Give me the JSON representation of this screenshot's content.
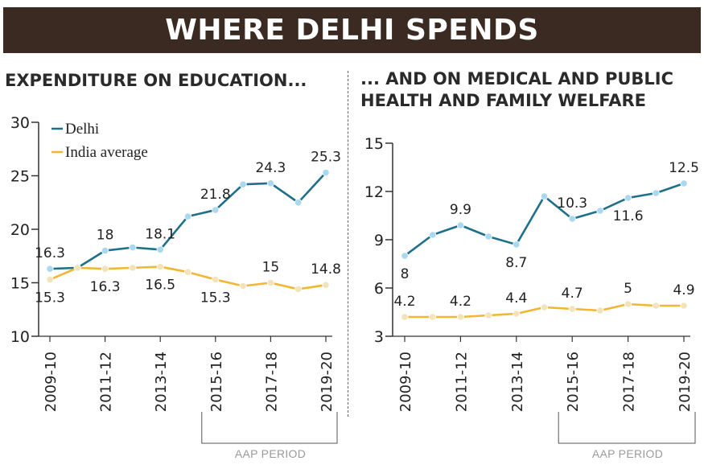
{
  "banner": {
    "title": "WHERE DELHI SPENDS"
  },
  "panels": [
    {
      "title": "EXPENDITURE ON EDUCATION..."
    },
    {
      "title": "... AND ON MEDICAL AND PUBLIC\nHEALTH AND FAMILY WELFARE"
    }
  ],
  "colors": {
    "banner_bg": "#3a2a22",
    "delhi": "#1f6f8b",
    "delhi_marker": "#a9d8ef",
    "india": "#f2b631",
    "india_marker": "#f3e3b8"
  },
  "chart_data": [
    {
      "type": "line",
      "title": "EXPENDITURE ON EDUCATION...",
      "categories": [
        "2009-10",
        "2010-11",
        "2011-12",
        "2012-13",
        "2013-14",
        "2014-15",
        "2015-16",
        "2016-17",
        "2017-18",
        "2018-19",
        "2019-20"
      ],
      "tick_labels": [
        "2009-10",
        "2011-12",
        "2013-14",
        "2015-16",
        "2017-18",
        "2019-20"
      ],
      "ylim": [
        10,
        30
      ],
      "yticks": [
        10,
        15,
        20,
        25,
        30
      ],
      "legend": {
        "placement": "top-left",
        "entries": [
          "Delhi",
          "India average"
        ]
      },
      "series": [
        {
          "name": "Delhi",
          "values": [
            16.3,
            16.4,
            18.0,
            18.3,
            18.1,
            21.2,
            21.8,
            24.2,
            24.3,
            22.5,
            25.3
          ]
        },
        {
          "name": "India average",
          "values": [
            15.3,
            16.4,
            16.3,
            16.4,
            16.5,
            16.0,
            15.3,
            14.7,
            15.0,
            14.4,
            14.8
          ]
        }
      ],
      "data_labels": [
        {
          "series": 0,
          "index": 0,
          "text": "16.3",
          "pos": "above"
        },
        {
          "series": 0,
          "index": 2,
          "text": "18",
          "pos": "above"
        },
        {
          "series": 0,
          "index": 4,
          "text": "18.1",
          "pos": "above"
        },
        {
          "series": 0,
          "index": 6,
          "text": "21.8",
          "pos": "above"
        },
        {
          "series": 0,
          "index": 8,
          "text": "24.3",
          "pos": "above"
        },
        {
          "series": 0,
          "index": 10,
          "text": "25.3",
          "pos": "above"
        },
        {
          "series": 1,
          "index": 0,
          "text": "15.3",
          "pos": "below"
        },
        {
          "series": 1,
          "index": 2,
          "text": "16.3",
          "pos": "below"
        },
        {
          "series": 1,
          "index": 4,
          "text": "16.5",
          "pos": "below"
        },
        {
          "series": 1,
          "index": 6,
          "text": "15.3",
          "pos": "below"
        },
        {
          "series": 1,
          "index": 8,
          "text": "15",
          "pos": "above"
        },
        {
          "series": 1,
          "index": 10,
          "text": "14.8",
          "pos": "above"
        }
      ],
      "bracket": {
        "label": "AAP PERIOD",
        "from": "2015-16",
        "to": "2019-20"
      }
    },
    {
      "type": "line",
      "title": "... AND ON MEDICAL AND PUBLIC HEALTH AND FAMILY WELFARE",
      "categories": [
        "2009-10",
        "2010-11",
        "2011-12",
        "2012-13",
        "2013-14",
        "2014-15",
        "2015-16",
        "2016-17",
        "2017-18",
        "2018-19",
        "2019-20"
      ],
      "tick_labels": [
        "2009-10",
        "2011-12",
        "2013-14",
        "2015-16",
        "2017-18",
        "2019-20"
      ],
      "ylim": [
        3,
        15
      ],
      "yticks": [
        3,
        6,
        9,
        12,
        15
      ],
      "series": [
        {
          "name": "Delhi",
          "values": [
            8.0,
            9.3,
            9.9,
            9.2,
            8.7,
            11.7,
            10.3,
            10.8,
            11.6,
            11.9,
            12.5
          ]
        },
        {
          "name": "India average",
          "values": [
            4.2,
            4.2,
            4.2,
            4.3,
            4.4,
            4.8,
            4.7,
            4.6,
            5.0,
            4.9,
            4.9
          ]
        }
      ],
      "data_labels": [
        {
          "series": 0,
          "index": 0,
          "text": "8",
          "pos": "below"
        },
        {
          "series": 0,
          "index": 2,
          "text": "9.9",
          "pos": "above"
        },
        {
          "series": 0,
          "index": 4,
          "text": "8.7",
          "pos": "below"
        },
        {
          "series": 0,
          "index": 6,
          "text": "10.3",
          "pos": "above"
        },
        {
          "series": 0,
          "index": 8,
          "text": "11.6",
          "pos": "below"
        },
        {
          "series": 0,
          "index": 10,
          "text": "12.5",
          "pos": "above"
        },
        {
          "series": 1,
          "index": 0,
          "text": "4.2",
          "pos": "above"
        },
        {
          "series": 1,
          "index": 2,
          "text": "4.2",
          "pos": "above"
        },
        {
          "series": 1,
          "index": 4,
          "text": "4.4",
          "pos": "above"
        },
        {
          "series": 1,
          "index": 6,
          "text": "4.7",
          "pos": "above"
        },
        {
          "series": 1,
          "index": 8,
          "text": "5",
          "pos": "above"
        },
        {
          "series": 1,
          "index": 10,
          "text": "4.9",
          "pos": "above"
        }
      ],
      "bracket": {
        "label": "AAP PERIOD",
        "from": "2015-16",
        "to": "2019-20"
      }
    }
  ]
}
